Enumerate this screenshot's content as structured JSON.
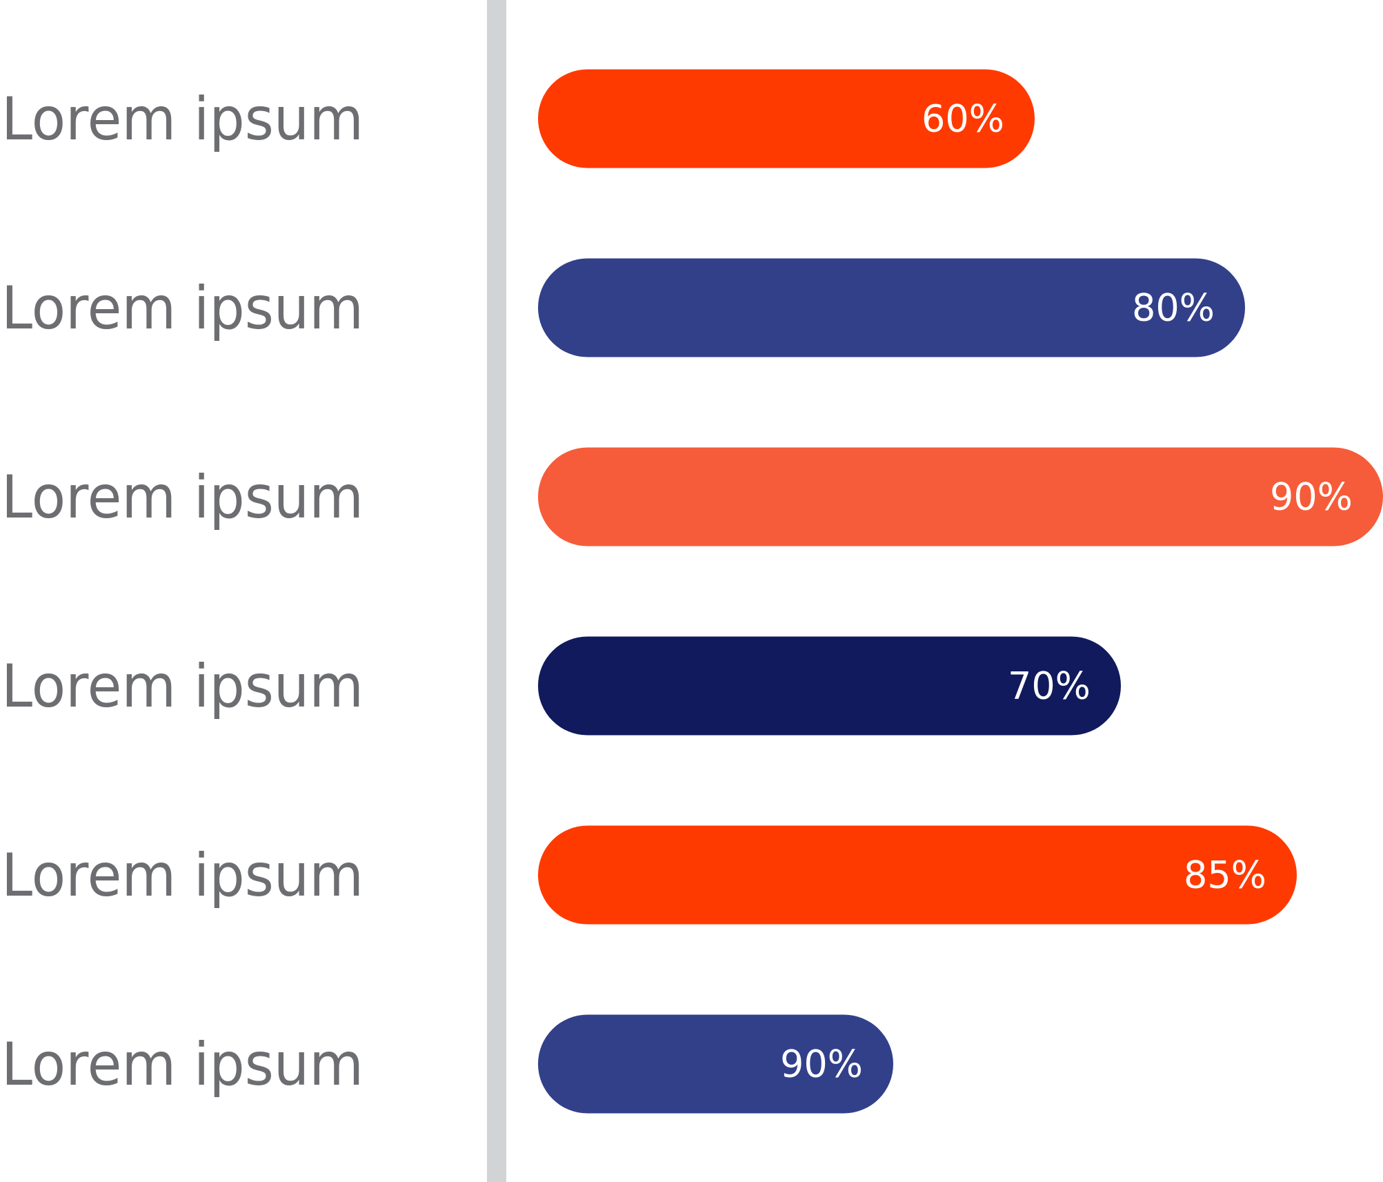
{
  "chart_data": {
    "type": "bar",
    "orientation": "horizontal",
    "categories": [
      "Lorem ipsum",
      "Lorem ipsum",
      "Lorem ipsum",
      "Lorem ipsum",
      "Lorem ipsum",
      "Lorem ipsum"
    ],
    "values": [
      60,
      80,
      90,
      70,
      85,
      90
    ],
    "value_labels": [
      "60%",
      "80%",
      "90%",
      "70%",
      "85%",
      "90%"
    ],
    "bar_colors": [
      "#ff3a00",
      "#32408a",
      "#f65c39",
      "#111a5c",
      "#ff3a00",
      "#32408a"
    ],
    "axis_line_color": "#d1d3d5",
    "category_label_color": "#6d6e71",
    "value_label_color": "#ffffff",
    "grid": false,
    "legend": "none"
  }
}
